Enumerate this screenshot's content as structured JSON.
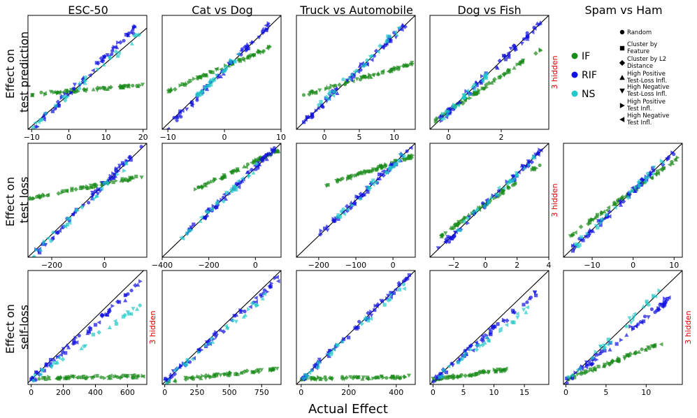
{
  "chart_data": {
    "type": "scatter",
    "figure_xlabel": "Actual Effect",
    "column_titles": [
      "ESC-50",
      "Cat vs Dog",
      "Truck vs Automobile",
      "Dog vs Fish",
      "Spam vs Ham"
    ],
    "row_labels": [
      [
        "Effect on",
        "test prediction"
      ],
      [
        "Effect on",
        "test loss"
      ],
      [
        "Effect on",
        "self-loss"
      ]
    ],
    "hidden_note": "3 hidden",
    "series_colors": {
      "IF": "#1a8a1a",
      "RIF": "#1010e0",
      "NS": "#20c8c8"
    },
    "legend_methods": [
      "IF",
      "RIF",
      "NS"
    ],
    "legend_markers": [
      {
        "marker": "circle",
        "label": "Random"
      },
      {
        "marker": "square",
        "label": "Cluster by Feature"
      },
      {
        "marker": "diamond",
        "label": "Cluster by L2 Distance"
      },
      {
        "marker": "triangle-up",
        "label": "High Positive Test-Loss Infl."
      },
      {
        "marker": "triangle-down",
        "label": "High Negative Test-Loss Infl."
      },
      {
        "marker": "triangle-right",
        "label": "High Positive Test Infl."
      },
      {
        "marker": "triangle-left",
        "label": "High Negative Test Infl."
      }
    ],
    "panels": [
      {
        "row": 0,
        "col": 0,
        "xlim": [
          -11,
          21
        ],
        "xticks": [
          -10,
          0,
          10,
          20
        ],
        "ylim": [
          -11,
          25
        ],
        "hidden": false,
        "trends": [
          {
            "s": "IF",
            "x0": -10,
            "x1": 20,
            "slope": 0.1,
            "intercept": 1
          },
          {
            "s": "RIF",
            "x0": -10,
            "x1": 18,
            "slope": 1.15,
            "intercept": 0.5
          },
          {
            "s": "NS",
            "x0": -10,
            "x1": 20,
            "slope": 1.0,
            "intercept": 0
          }
        ]
      },
      {
        "row": 0,
        "col": 1,
        "xlim": [
          -11,
          10
        ],
        "xticks": [
          -10,
          0,
          10
        ],
        "ylim": [
          -11,
          10
        ],
        "hidden": false,
        "trends": [
          {
            "s": "IF",
            "x0": -10,
            "x1": 8,
            "slope": 0.45,
            "intercept": 0.5
          },
          {
            "s": "RIF",
            "x0": -10,
            "x1": 9,
            "slope": 1.05,
            "intercept": 0
          },
          {
            "s": "NS",
            "x0": -5,
            "x1": 3,
            "slope": 1.0,
            "intercept": 0
          }
        ]
      },
      {
        "row": 0,
        "col": 2,
        "xlim": [
          -4,
          13
        ],
        "xticks": [
          0,
          5,
          10
        ],
        "ylim": [
          -4,
          13
        ],
        "hidden": false,
        "trends": [
          {
            "s": "IF",
            "x0": -3,
            "x1": 13,
            "slope": 0.3,
            "intercept": 2
          },
          {
            "s": "RIF",
            "x0": -3,
            "x1": 12,
            "slope": 1.0,
            "intercept": 0
          },
          {
            "s": "NS",
            "x0": -1,
            "x1": 11,
            "slope": 1.0,
            "intercept": 0.3
          }
        ]
      },
      {
        "row": 0,
        "col": 3,
        "xlim": [
          -0.7,
          3.8
        ],
        "xticks": [
          0,
          2
        ],
        "ylim": [
          -0.7,
          3.8
        ],
        "hidden": true,
        "trends": [
          {
            "s": "IF",
            "x0": -0.5,
            "x1": 3.5,
            "slope": 0.7,
            "intercept": 0
          },
          {
            "s": "RIF",
            "x0": -0.5,
            "x1": 3.5,
            "slope": 1.0,
            "intercept": 0
          },
          {
            "s": "NS",
            "x0": -0.3,
            "x1": 1.5,
            "slope": 1.0,
            "intercept": 0
          }
        ]
      },
      {
        "row": 1,
        "col": 0,
        "xlim": [
          -290,
          160
        ],
        "xticks": [
          -200,
          0
        ],
        "ylim": [
          -290,
          160
        ],
        "hidden": false,
        "trends": [
          {
            "s": "IF",
            "x0": -290,
            "x1": 150,
            "slope": 0.2,
            "intercept": 0
          },
          {
            "s": "RIF",
            "x0": -270,
            "x1": 140,
            "slope": 1.05,
            "intercept": 0
          },
          {
            "s": "NS",
            "x0": -270,
            "x1": 100,
            "slope": 1.0,
            "intercept": -10
          }
        ]
      },
      {
        "row": 1,
        "col": 1,
        "xlim": [
          -400,
          110
        ],
        "xticks": [
          -400,
          -200,
          0
        ],
        "ylim": [
          -400,
          110
        ],
        "hidden": false,
        "trends": [
          {
            "s": "IF",
            "x0": -260,
            "x1": 100,
            "slope": 0.5,
            "intercept": 30
          },
          {
            "s": "RIF",
            "x0": -320,
            "x1": 90,
            "slope": 1.0,
            "intercept": 0
          },
          {
            "s": "NS",
            "x0": -330,
            "x1": 20,
            "slope": 1.0,
            "intercept": 0
          }
        ]
      },
      {
        "row": 1,
        "col": 2,
        "xlim": [
          -260,
          60
        ],
        "xticks": [
          -200,
          -100,
          0
        ],
        "ylim": [
          -260,
          60
        ],
        "hidden": false,
        "trends": [
          {
            "s": "IF",
            "x0": -180,
            "x1": 55,
            "slope": 0.35,
            "intercept": 5
          },
          {
            "s": "RIF",
            "x0": -200,
            "x1": 55,
            "slope": 1.0,
            "intercept": 0
          },
          {
            "s": "NS",
            "x0": -150,
            "x1": 30,
            "slope": 1.0,
            "intercept": 0
          }
        ]
      },
      {
        "row": 1,
        "col": 3,
        "xlim": [
          -3.5,
          4.0
        ],
        "xticks": [
          -2,
          0,
          2,
          4
        ],
        "ylim": [
          -3.5,
          4.0
        ],
        "hidden": true,
        "trends": [
          {
            "s": "IF",
            "x0": -3,
            "x1": 3.8,
            "slope": 0.75,
            "intercept": 0
          },
          {
            "s": "RIF",
            "x0": -3,
            "x1": 3.6,
            "slope": 1.0,
            "intercept": 0
          },
          {
            "s": "NS",
            "x0": -2,
            "x1": 3.4,
            "slope": 1.0,
            "intercept": 0
          }
        ]
      },
      {
        "row": 1,
        "col": 4,
        "xlim": [
          -17,
          12
        ],
        "xticks": [
          -10,
          0,
          10
        ],
        "ylim": [
          -17,
          12
        ],
        "hidden": false,
        "trends": [
          {
            "s": "IF",
            "x0": -16,
            "x1": 11,
            "slope": 0.75,
            "intercept": 0
          },
          {
            "s": "RIF",
            "x0": -16,
            "x1": 10,
            "slope": 1.0,
            "intercept": 0
          },
          {
            "s": "NS",
            "x0": -14,
            "x1": 8,
            "slope": 1.0,
            "intercept": 0
          }
        ]
      },
      {
        "row": 2,
        "col": 0,
        "xlim": [
          -20,
          720
        ],
        "xticks": [
          0,
          200,
          400,
          600
        ],
        "ylim": [
          -30,
          700
        ],
        "hidden": true,
        "trends": [
          {
            "s": "IF",
            "x0": 0,
            "x1": 700,
            "slope": 0.02,
            "intercept": 10
          },
          {
            "s": "RIF",
            "x0": 0,
            "x1": 680,
            "slope": 0.9,
            "intercept": 0
          },
          {
            "s": "NS",
            "x0": 0,
            "x1": 700,
            "slope": 0.7,
            "intercept": 0
          }
        ]
      },
      {
        "row": 2,
        "col": 1,
        "xlim": [
          -20,
          900
        ],
        "xticks": [
          0,
          250,
          500,
          750
        ],
        "ylim": [
          -20,
          900
        ],
        "hidden": false,
        "trends": [
          {
            "s": "IF",
            "x0": 0,
            "x1": 880,
            "slope": 0.12,
            "intercept": 5
          },
          {
            "s": "RIF",
            "x0": 0,
            "x1": 880,
            "slope": 0.95,
            "intercept": 0
          },
          {
            "s": "NS",
            "x0": 0,
            "x1": 850,
            "slope": 0.9,
            "intercept": 0
          }
        ]
      },
      {
        "row": 2,
        "col": 2,
        "xlim": [
          -20,
          480
        ],
        "xticks": [
          0,
          200,
          400
        ],
        "ylim": [
          -20,
          480
        ],
        "hidden": false,
        "trends": [
          {
            "s": "IF",
            "x0": 0,
            "x1": 460,
            "slope": 0.02,
            "intercept": 5
          },
          {
            "s": "RIF",
            "x0": 0,
            "x1": 460,
            "slope": 1.0,
            "intercept": 0
          },
          {
            "s": "NS",
            "x0": 0,
            "x1": 440,
            "slope": 0.95,
            "intercept": 0
          }
        ]
      },
      {
        "row": 2,
        "col": 3,
        "xlim": [
          -0.5,
          19
        ],
        "xticks": [
          0,
          5,
          10,
          15
        ],
        "ylim": [
          -0.5,
          19
        ],
        "hidden": false,
        "trends": [
          {
            "s": "IF",
            "x0": 0,
            "x1": 12,
            "slope": 0.15,
            "intercept": 0.3
          },
          {
            "s": "RIF",
            "x0": 0,
            "x1": 17,
            "slope": 0.9,
            "intercept": 0
          },
          {
            "s": "NS",
            "x0": 0,
            "x1": 16,
            "slope": 0.8,
            "intercept": 0
          }
        ]
      },
      {
        "row": 2,
        "col": 4,
        "xlim": [
          -0.3,
          14.5
        ],
        "xticks": [
          0,
          5,
          10
        ],
        "ylim": [
          -0.3,
          14.5
        ],
        "hidden": true,
        "trends": [
          {
            "s": "IF",
            "x0": 0,
            "x1": 12,
            "slope": 0.4,
            "intercept": 0.3
          },
          {
            "s": "RIF",
            "x0": 0,
            "x1": 13,
            "slope": 0.85,
            "intercept": 0
          },
          {
            "s": "NS",
            "x0": 0,
            "x1": 12,
            "slope": 1.0,
            "intercept": 0
          }
        ]
      }
    ]
  }
}
